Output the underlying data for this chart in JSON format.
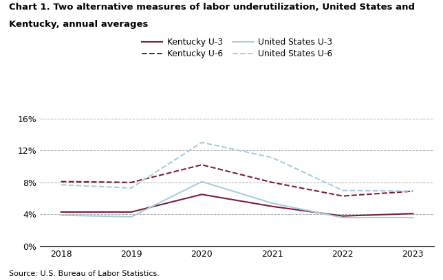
{
  "title_line1": "Chart 1. Two alternative measures of labor underutilization, United States and",
  "title_line2": "Kentucky, annual averages",
  "years": [
    2018,
    2019,
    2020,
    2021,
    2022,
    2023
  ],
  "ky_u3": [
    4.3,
    4.3,
    6.5,
    5.0,
    3.8,
    4.1
  ],
  "ky_u6": [
    8.1,
    8.0,
    10.2,
    8.0,
    6.3,
    6.9
  ],
  "us_u3": [
    3.9,
    3.7,
    8.1,
    5.4,
    3.6,
    3.6
  ],
  "us_u6": [
    7.7,
    7.3,
    13.0,
    11.1,
    7.0,
    6.9
  ],
  "color_ky": "#7b1a3a",
  "color_us": "#a8cde0",
  "ylabel_ticks": [
    0,
    4,
    8,
    12,
    16
  ],
  "ylim": [
    0,
    17.5
  ],
  "xlim": [
    2017.7,
    2023.3
  ],
  "source": "Source: U.S. Bureau of Labor Statistics.",
  "legend_entries": [
    "Kentucky U-3",
    "Kentucky U-6",
    "United States U-3",
    "United States U-6"
  ]
}
